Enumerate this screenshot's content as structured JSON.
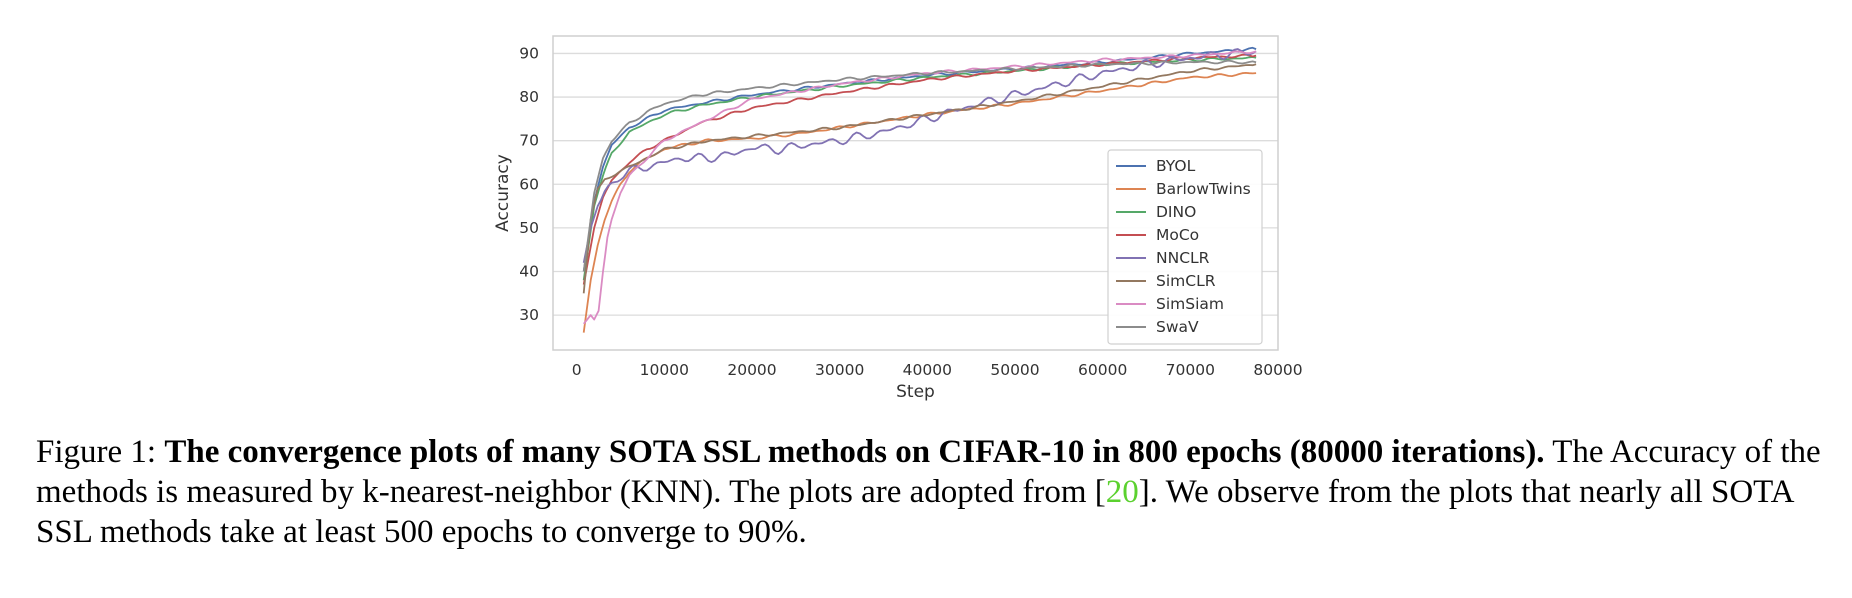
{
  "chart_data": {
    "type": "line",
    "title": "",
    "xlabel": "Step",
    "ylabel": "Accuracy",
    "xlim": [
      -2700,
      80000
    ],
    "ylim": [
      22,
      94
    ],
    "xticks": [
      0,
      10000,
      20000,
      30000,
      40000,
      50000,
      60000,
      70000,
      80000
    ],
    "yticks": [
      30,
      40,
      50,
      60,
      70,
      80,
      90
    ],
    "grid": true,
    "legend_position": "lower-right",
    "series": [
      {
        "name": "BYOL",
        "color": "#4c72b0",
        "x": [
          800,
          2000,
          3000,
          4000,
          6000,
          8000,
          10000,
          14000,
          20000,
          30000,
          40000,
          50000,
          60000,
          70000,
          77500
        ],
        "y": [
          40,
          56,
          64,
          69,
          73,
          75,
          77,
          78.5,
          80.5,
          83,
          85,
          86.5,
          88,
          90,
          91
        ]
      },
      {
        "name": "BarlowTwins",
        "color": "#dd8452",
        "x": [
          800,
          1600,
          2400,
          3200,
          4000,
          5000,
          6000,
          8000,
          10000,
          12000,
          15000,
          20000,
          25000,
          30000,
          40000,
          50000,
          60000,
          70000,
          77500
        ],
        "y": [
          26,
          38,
          46,
          52,
          56,
          60,
          63,
          66,
          68,
          69,
          70,
          70.5,
          71.5,
          73,
          76,
          78.5,
          81.5,
          84.5,
          85.5
        ]
      },
      {
        "name": "DINO",
        "color": "#55a868",
        "x": [
          800,
          2000,
          3000,
          4000,
          6000,
          8000,
          10000,
          14000,
          20000,
          30000,
          40000,
          50000,
          60000,
          70000,
          77500
        ],
        "y": [
          38,
          55,
          62,
          67,
          72,
          74,
          76,
          78,
          80,
          82.5,
          84.5,
          86,
          87.5,
          88.5,
          89
        ]
      },
      {
        "name": "MoCo",
        "color": "#c44e52",
        "x": [
          800,
          2000,
          3000,
          4000,
          6000,
          8000,
          10000,
          14000,
          20000,
          30000,
          40000,
          50000,
          60000,
          70000,
          77500
        ],
        "y": [
          37,
          50,
          57,
          61,
          65,
          68,
          70,
          74,
          77.5,
          81,
          84,
          86,
          87.5,
          89,
          89.5
        ]
      },
      {
        "name": "NNCLR",
        "color": "#8172b3",
        "x": [
          800,
          1600,
          2400,
          3200,
          4000,
          5000,
          6000,
          8000,
          10000,
          12000,
          15000,
          18000,
          20000,
          23000,
          26000,
          30000,
          35000,
          40000,
          45000,
          50000,
          55000,
          60000,
          65000,
          70000,
          75000,
          77500
        ],
        "y": [
          42,
          50,
          55,
          58,
          60,
          62,
          63,
          64,
          65,
          66,
          66,
          67,
          68.5,
          68,
          69,
          70,
          72,
          75,
          78,
          80.5,
          83,
          85.5,
          87.5,
          89,
          90,
          90.5
        ]
      },
      {
        "name": "SimCLR",
        "color": "#937860",
        "x": [
          800,
          1600,
          2400,
          3200,
          4000,
          6000,
          8000,
          10000,
          15000,
          20000,
          25000,
          30000,
          40000,
          50000,
          60000,
          70000,
          77500
        ],
        "y": [
          35,
          52,
          59,
          61,
          62,
          64,
          66,
          68,
          70,
          71,
          72,
          73,
          76,
          79,
          82.5,
          86,
          87.5
        ]
      },
      {
        "name": "SimSiam",
        "color": "#da8bc3",
        "x": [
          800,
          1600,
          2000,
          2500,
          3000,
          3500,
          4000,
          5000,
          6000,
          8000,
          10000,
          14000,
          20000,
          30000,
          40000,
          50000,
          60000,
          70000,
          77500
        ],
        "y": [
          28,
          30,
          29,
          31,
          40,
          48,
          52,
          58,
          62,
          66,
          70,
          74,
          79.5,
          83,
          85.5,
          87,
          88.5,
          89.5,
          90.5
        ]
      },
      {
        "name": "SwaV",
        "color": "#8c8c8c",
        "x": [
          800,
          2000,
          3000,
          4000,
          6000,
          8000,
          10000,
          14000,
          20000,
          30000,
          40000,
          50000,
          60000,
          70000,
          77500
        ],
        "y": [
          40,
          58,
          66,
          70,
          74,
          76.5,
          78.5,
          80.5,
          82,
          84,
          85.5,
          86.5,
          87.5,
          88,
          88
        ]
      }
    ]
  },
  "caption": {
    "prefix": "Figure 1: ",
    "bold": "The convergence plots of many SOTA SSL methods on CIFAR-10 in 800 epochs (80000 iterations).",
    "text_before_ref": " The Accuracy of the methods is measured by k-nearest-neighbor (KNN). The plots are adopted from [",
    "ref": "20",
    "text_after_ref": "]. We observe from the plots that nearly all SOTA SSL methods take at least 500 epochs to converge to 90%."
  }
}
